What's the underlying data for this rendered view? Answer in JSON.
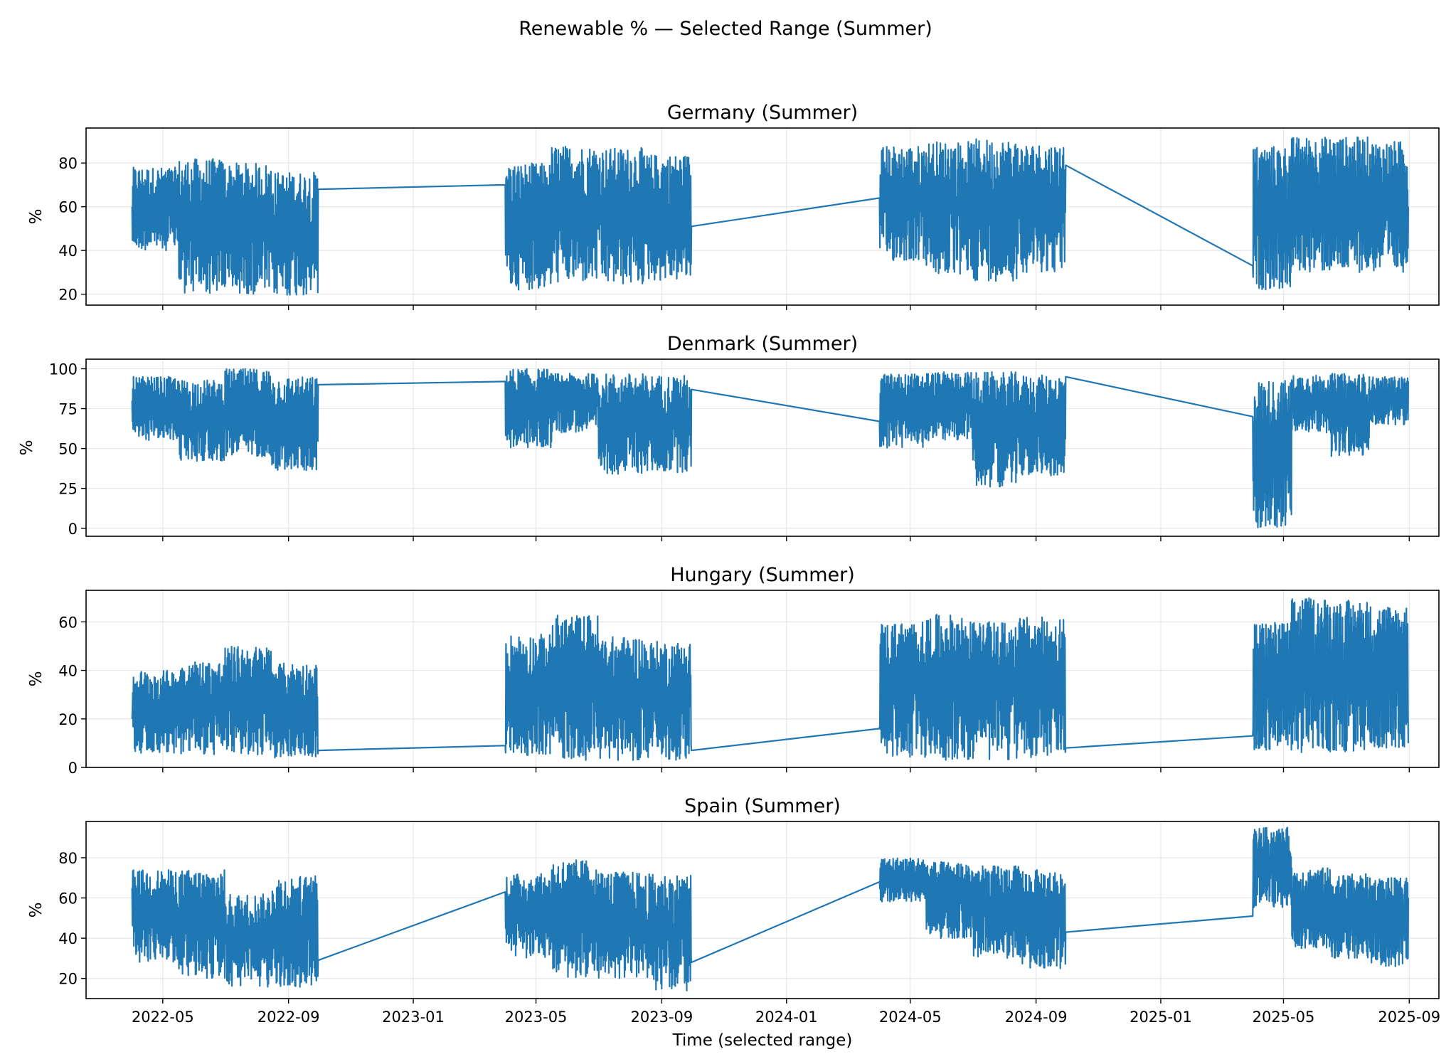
{
  "figure": {
    "title": "Renewable % — Selected Range (Summer)",
    "xlabel": "Time (selected range)"
  },
  "colors": {
    "series": "#1f77b4",
    "grid": "#e6e6e6",
    "axes": "#000000"
  },
  "chart_data": [
    {
      "type": "line",
      "title": "Germany (Summer)",
      "ylabel": "%",
      "yticks": [
        20,
        40,
        60,
        80
      ],
      "ylim": [
        15,
        96
      ],
      "grid": true,
      "x_range": [
        "2022-02-15",
        "2025-09-30"
      ],
      "xticks": [
        "2022-05",
        "2022-09",
        "2023-01",
        "2023-05",
        "2023-09",
        "2024-01",
        "2024-05",
        "2024-09",
        "2025-01",
        "2025-05",
        "2025-09"
      ],
      "segments": [
        {
          "start": "2022-04-01",
          "end": "2022-09-30",
          "lo": [
            40,
            20,
            20,
            19
          ],
          "hi": [
            78,
            82,
            80,
            76
          ],
          "first": 60,
          "last": 68
        },
        {
          "start": "2023-04-01",
          "end": "2023-09-30",
          "lo": [
            22,
            25,
            24,
            26
          ],
          "hi": [
            80,
            88,
            87,
            84
          ],
          "first": 70,
          "last": 51
        },
        {
          "start": "2024-04-01",
          "end": "2024-09-30",
          "lo": [
            35,
            28,
            26,
            30
          ],
          "hi": [
            88,
            90,
            91,
            89
          ],
          "first": 64,
          "last": 79
        },
        {
          "start": "2025-04-01",
          "end": "2025-08-31",
          "lo": [
            22,
            30,
            30,
            30
          ],
          "hi": [
            88,
            92,
            92,
            90
          ],
          "first": 33,
          "last": 60
        }
      ]
    },
    {
      "type": "line",
      "title": "Denmark (Summer)",
      "ylabel": "%",
      "yticks": [
        0,
        25,
        50,
        75,
        100
      ],
      "ylim": [
        -5,
        106
      ],
      "grid": true,
      "x_range": [
        "2022-02-15",
        "2025-09-30"
      ],
      "xticks": [
        "2022-05",
        "2022-09",
        "2023-01",
        "2023-05",
        "2023-09",
        "2024-01",
        "2024-05",
        "2024-09",
        "2025-01",
        "2025-05",
        "2025-09"
      ],
      "segments": [
        {
          "start": "2022-04-01",
          "end": "2022-09-30",
          "lo": [
            55,
            42,
            45,
            36
          ],
          "hi": [
            95,
            93,
            100,
            95
          ],
          "first": 80,
          "last": 90
        },
        {
          "start": "2023-04-01",
          "end": "2023-09-30",
          "lo": [
            50,
            60,
            34,
            35
          ],
          "hi": [
            100,
            97,
            97,
            96
          ],
          "first": 92,
          "last": 87
        },
        {
          "start": "2024-04-01",
          "end": "2024-09-30",
          "lo": [
            50,
            55,
            26,
            33
          ],
          "hi": [
            97,
            98,
            98,
            96
          ],
          "first": 67,
          "last": 95
        },
        {
          "start": "2025-04-01",
          "end": "2025-08-31",
          "lo": [
            0,
            60,
            45,
            65
          ],
          "hi": [
            93,
            96,
            97,
            95
          ],
          "first": 70,
          "last": 92
        }
      ]
    },
    {
      "type": "line",
      "title": "Hungary (Summer)",
      "ylabel": "%",
      "yticks": [
        0,
        20,
        40,
        60
      ],
      "ylim": [
        0,
        73
      ],
      "grid": true,
      "x_range": [
        "2022-02-15",
        "2025-09-30"
      ],
      "xticks": [
        "2022-05",
        "2022-09",
        "2023-01",
        "2023-05",
        "2023-09",
        "2024-01",
        "2024-05",
        "2024-09",
        "2025-01",
        "2025-05",
        "2025-09"
      ],
      "segments": [
        {
          "start": "2022-04-01",
          "end": "2022-09-30",
          "lo": [
            6,
            5,
            5,
            4
          ],
          "hi": [
            40,
            44,
            50,
            43
          ],
          "first": 20,
          "last": 7
        },
        {
          "start": "2023-04-01",
          "end": "2023-09-30",
          "lo": [
            5,
            3,
            3,
            3
          ],
          "hi": [
            55,
            63,
            54,
            52
          ],
          "first": 9,
          "last": 7
        },
        {
          "start": "2024-04-01",
          "end": "2024-09-30",
          "lo": [
            4,
            3,
            3,
            4
          ],
          "hi": [
            60,
            63,
            60,
            62
          ],
          "first": 16,
          "last": 8
        },
        {
          "start": "2025-04-01",
          "end": "2025-08-31",
          "lo": [
            7,
            6,
            6,
            8
          ],
          "hi": [
            60,
            70,
            69,
            67
          ],
          "first": 13,
          "last": 10
        }
      ]
    },
    {
      "type": "line",
      "title": "Spain (Summer)",
      "ylabel": "%",
      "yticks": [
        20,
        40,
        60,
        80
      ],
      "ylim": [
        10,
        98
      ],
      "grid": true,
      "x_range": [
        "2022-02-15",
        "2025-09-30"
      ],
      "xticks": [
        "2022-05",
        "2022-09",
        "2023-01",
        "2023-05",
        "2023-09",
        "2024-01",
        "2024-05",
        "2024-09",
        "2025-01",
        "2025-05",
        "2025-09"
      ],
      "segments": [
        {
          "start": "2022-04-01",
          "end": "2022-09-30",
          "lo": [
            28,
            20,
            15,
            15
          ],
          "hi": [
            74,
            74,
            62,
            71
          ],
          "first": 65,
          "last": 29
        },
        {
          "start": "2023-04-01",
          "end": "2023-09-30",
          "lo": [
            30,
            20,
            20,
            14
          ],
          "hi": [
            72,
            79,
            73,
            72
          ],
          "first": 63,
          "last": 28
        },
        {
          "start": "2024-04-01",
          "end": "2024-09-30",
          "lo": [
            58,
            40,
            30,
            25
          ],
          "hi": [
            80,
            78,
            76,
            74
          ],
          "first": 68,
          "last": 43
        },
        {
          "start": "2025-04-01",
          "end": "2025-08-31",
          "lo": [
            55,
            35,
            30,
            26
          ],
          "hi": [
            95,
            75,
            72,
            70
          ],
          "first": 51,
          "last": 60
        }
      ]
    }
  ]
}
